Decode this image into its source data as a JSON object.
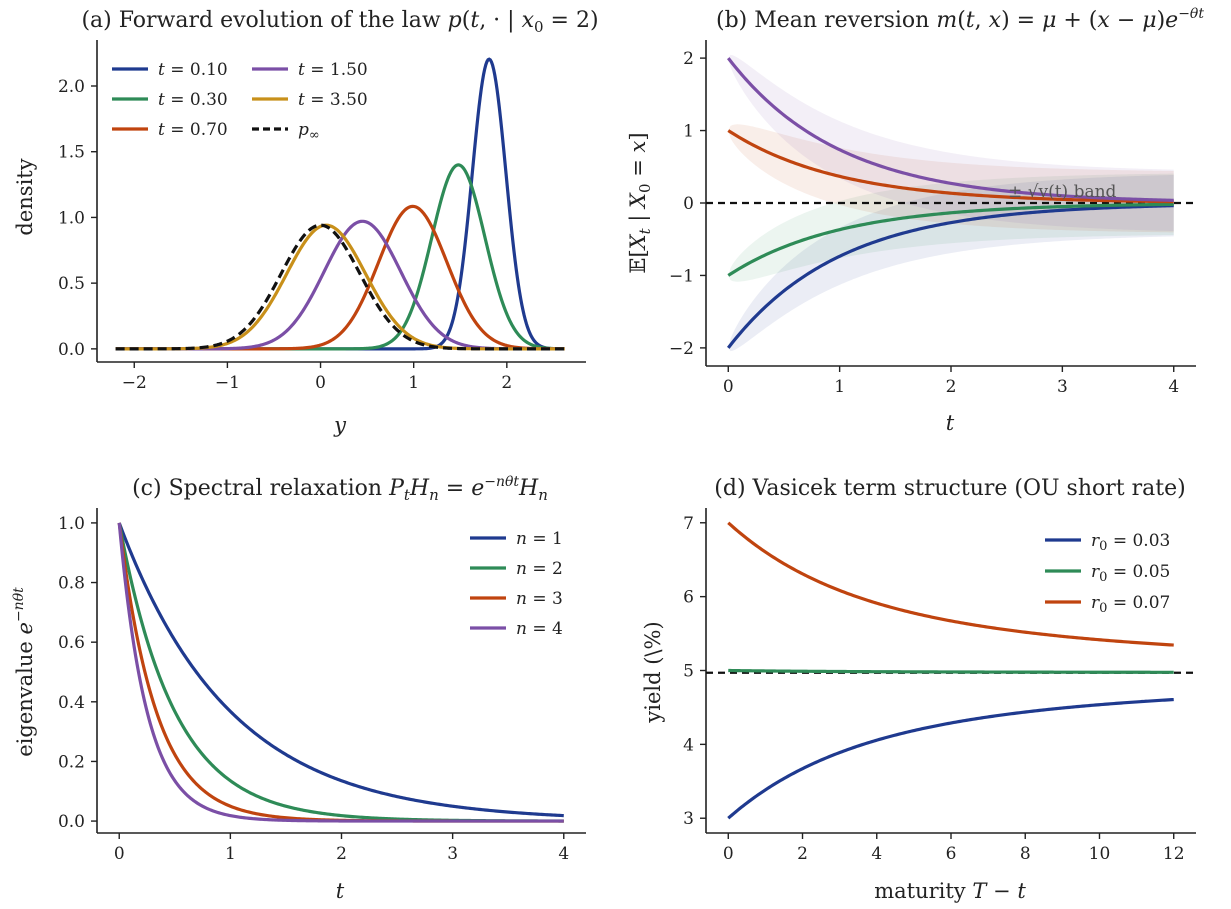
{
  "colors": {
    "blue": "#1f3a8f",
    "green": "#2e8b57",
    "orange": "#c0440f",
    "purple": "#7b4fa6",
    "gold": "#c8901a",
    "black": "#111111"
  },
  "chart_data": [
    {
      "type": "line",
      "title": "(a) Forward evolution of the law p(t, · | x₀ = 2)",
      "xlabel": "y",
      "ylabel": "density",
      "xlim": [
        -2.4,
        2.85
      ],
      "ylim": [
        -0.1,
        2.35
      ],
      "xticks": [
        -2,
        -1,
        0,
        1,
        2
      ],
      "yticks": [
        0.0,
        0.5,
        1.0,
        1.5,
        2.0
      ],
      "xtick_labels": [
        "−2",
        "−1",
        "0",
        "1",
        "2"
      ],
      "ytick_labels": [
        "0.0",
        "0.5",
        "1.0",
        "1.5",
        "2.0"
      ],
      "x_domain": [
        -2.2,
        2.62
      ],
      "legend_placement": "top-left",
      "series": [
        {
          "name": "t = 0.10",
          "color": "#1f3a8f",
          "kind": "gaussian",
          "mean": 1.81,
          "std": 0.181,
          "dash": false
        },
        {
          "name": "t = 0.30",
          "color": "#2e8b57",
          "kind": "gaussian",
          "mean": 1.48,
          "std": 0.285,
          "dash": false
        },
        {
          "name": "t = 0.70",
          "color": "#c0440f",
          "kind": "gaussian",
          "mean": 0.99,
          "std": 0.368,
          "dash": false
        },
        {
          "name": "t = 1.50",
          "color": "#7b4fa6",
          "kind": "gaussian",
          "mean": 0.45,
          "std": 0.411,
          "dash": false
        },
        {
          "name": "t = 3.50",
          "color": "#c8901a",
          "kind": "gaussian",
          "mean": 0.06,
          "std": 0.424,
          "dash": false
        },
        {
          "name": "p∞",
          "color": "#111111",
          "kind": "gaussian",
          "mean": 0.0,
          "std": 0.424,
          "dash": true
        }
      ]
    },
    {
      "type": "line",
      "title": "(b) Mean reversion m(t, x) = μ + (x − μ)e^(−θt)",
      "xlabel": "t",
      "ylabel": "𝔼[Xt | X0 = x]",
      "xlim": [
        -0.2,
        4.2
      ],
      "ylim": [
        -2.25,
        2.25
      ],
      "xticks": [
        0,
        1,
        2,
        3,
        4
      ],
      "yticks": [
        -2,
        -1,
        0,
        1,
        2
      ],
      "xtick_labels": [
        "0",
        "1",
        "2",
        "3",
        "4"
      ],
      "ytick_labels": [
        "−2",
        "−1",
        "0",
        "1",
        "2"
      ],
      "mu": 0.0,
      "theta": 1.0,
      "sigma_inf": 0.424,
      "annotation": "± √v(t) band",
      "reference_line": 0.0,
      "series": [
        {
          "x0": -2,
          "color": "#1f3a8f"
        },
        {
          "x0": -1,
          "color": "#2e8b57"
        },
        {
          "x0": 1,
          "color": "#c0440f"
        },
        {
          "x0": 2,
          "color": "#7b4fa6"
        }
      ]
    },
    {
      "type": "line",
      "title": "(c) Spectral relaxation PtHn = e^(−nθt)Hn",
      "xlabel": "t",
      "ylabel": "eigenvalue e^(−nθt)",
      "xlim": [
        -0.2,
        4.2
      ],
      "ylim": [
        -0.04,
        1.05
      ],
      "xticks": [
        0,
        1,
        2,
        3,
        4
      ],
      "yticks": [
        0.0,
        0.2,
        0.4,
        0.6,
        0.8,
        1.0
      ],
      "xtick_labels": [
        "0",
        "1",
        "2",
        "3",
        "4"
      ],
      "ytick_labels": [
        "0.0",
        "0.2",
        "0.4",
        "0.6",
        "0.8",
        "1.0"
      ],
      "theta": 1.0,
      "legend_placement": "top-right",
      "series": [
        {
          "name": "n = 1",
          "n": 1,
          "color": "#1f3a8f"
        },
        {
          "name": "n = 2",
          "n": 2,
          "color": "#2e8b57"
        },
        {
          "name": "n = 3",
          "n": 3,
          "color": "#c0440f"
        },
        {
          "name": "n = 4",
          "n": 4,
          "color": "#7b4fa6"
        }
      ]
    },
    {
      "type": "line",
      "title": "(d) Vasicek term structure (OU short rate)",
      "xlabel": "maturity T − t",
      "ylabel": "yield (\\%)",
      "xlim": [
        -0.6,
        12.6
      ],
      "ylim": [
        2.8,
        7.2
      ],
      "xticks": [
        0,
        2,
        4,
        6,
        8,
        10,
        12
      ],
      "yticks": [
        3,
        4,
        5,
        6,
        7
      ],
      "xtick_labels": [
        "0",
        "2",
        "4",
        "6",
        "8",
        "10",
        "12"
      ],
      "ytick_labels": [
        "3",
        "4",
        "5",
        "6",
        "7"
      ],
      "long_yield": 4.97,
      "kappa": 0.45,
      "legend_placement": "top-right",
      "series": [
        {
          "name": "r0 = 0.03",
          "r0": 3.0,
          "color": "#1f3a8f"
        },
        {
          "name": "r0 = 0.05",
          "r0": 5.0,
          "color": "#2e8b57"
        },
        {
          "name": "r0 = 0.07",
          "r0": 7.0,
          "color": "#c0440f"
        }
      ]
    }
  ]
}
